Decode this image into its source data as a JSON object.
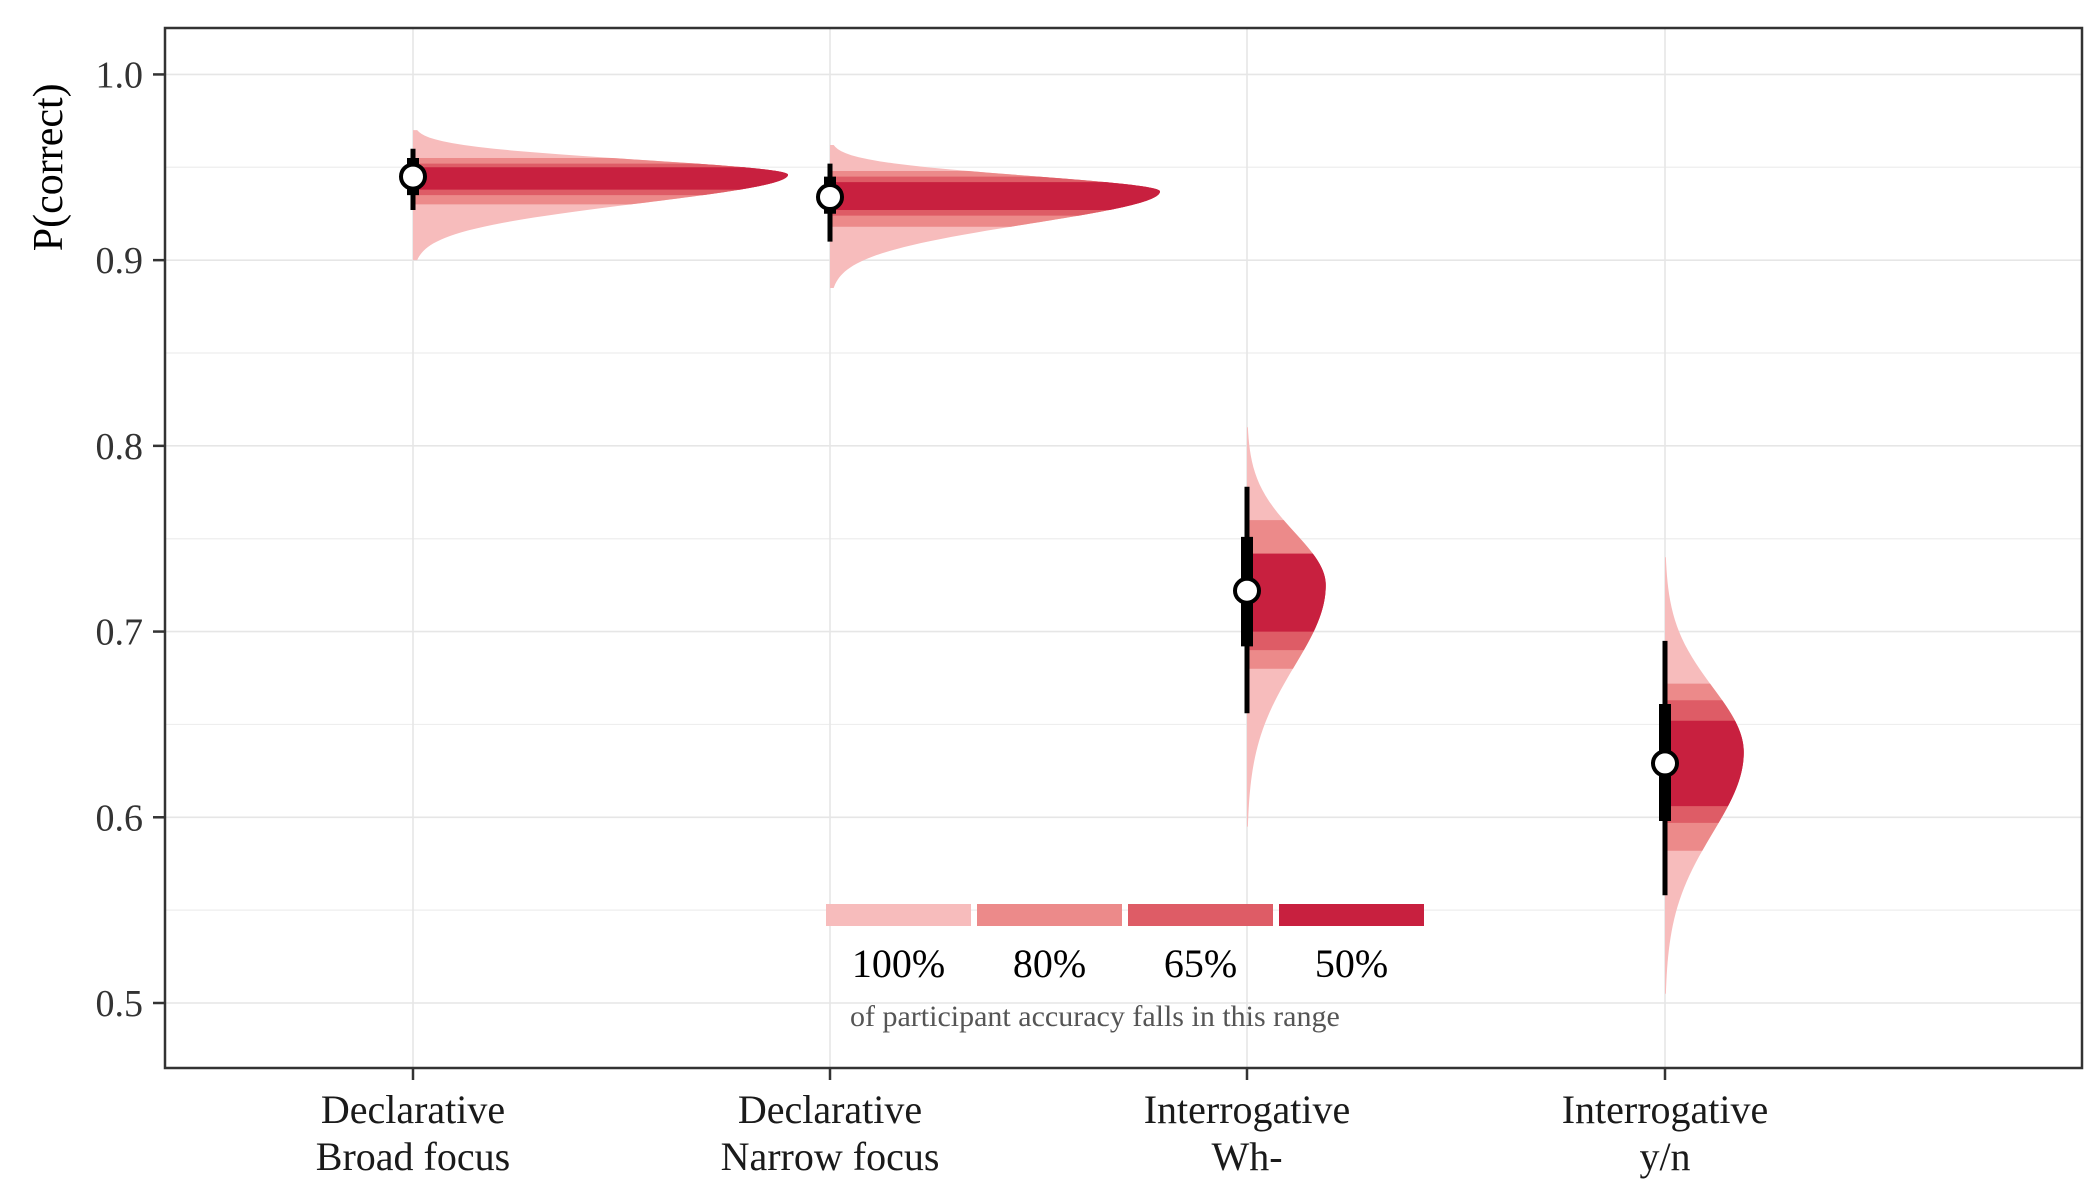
{
  "chart_data": {
    "type": "half-violin",
    "ylabel": "P(correct)",
    "ylim": [
      0.465,
      1.025
    ],
    "yticks": [
      0.5,
      0.6,
      0.7,
      0.8,
      0.9,
      1.0
    ],
    "ytick_labels": [
      "0.5",
      "0.6",
      "0.7",
      "0.8",
      "0.9",
      "1.0"
    ],
    "grid": true,
    "categories": [
      [
        "Declarative",
        "Broad focus"
      ],
      [
        "Declarative",
        "Narrow focus"
      ],
      [
        "Interrogative",
        "Wh-"
      ],
      [
        "Interrogative",
        "y/n"
      ]
    ],
    "series": [
      {
        "median": 0.945,
        "interval_thick": [
          0.935,
          0.955
        ],
        "interval_thin": [
          0.927,
          0.96
        ],
        "density_mode": 0.946,
        "density_min": 0.9,
        "density_max": 0.97,
        "bands": {
          "100": [
            0.9,
            0.97
          ],
          "80": [
            0.93,
            0.955
          ],
          "65": [
            0.935,
            0.952
          ],
          "50": [
            0.938,
            0.95
          ]
        }
      },
      {
        "median": 0.934,
        "interval_thick": [
          0.925,
          0.945
        ],
        "interval_thin": [
          0.91,
          0.952
        ],
        "density_mode": 0.937,
        "density_min": 0.885,
        "density_max": 0.962,
        "bands": {
          "100": [
            0.885,
            0.962
          ],
          "80": [
            0.918,
            0.948
          ],
          "65": [
            0.924,
            0.945
          ],
          "50": [
            0.927,
            0.942
          ]
        }
      },
      {
        "median": 0.722,
        "interval_thick": [
          0.692,
          0.751
        ],
        "interval_thin": [
          0.656,
          0.778
        ],
        "density_mode": 0.725,
        "density_min": 0.595,
        "density_max": 0.81,
        "bands": {
          "100": [
            0.595,
            0.81
          ],
          "80": [
            0.68,
            0.76
          ],
          "65": [
            0.69,
            0.742
          ],
          "50": [
            0.7,
            0.742
          ]
        }
      },
      {
        "median": 0.629,
        "interval_thick": [
          0.598,
          0.661
        ],
        "interval_thin": [
          0.558,
          0.695
        ],
        "density_mode": 0.635,
        "density_min": 0.505,
        "density_max": 0.74,
        "bands": {
          "100": [
            0.505,
            0.74
          ],
          "80": [
            0.582,
            0.672
          ],
          "65": [
            0.597,
            0.663
          ],
          "50": [
            0.606,
            0.652
          ]
        }
      }
    ],
    "density_scale": [
      1.0,
      0.88,
      0.21,
      0.21
    ],
    "legend": {
      "placement": "bottom-center",
      "items": [
        "100%",
        "80%",
        "65%",
        "50%"
      ],
      "colors": [
        "#f7bcbc",
        "#ec8a8a",
        "#de5c66",
        "#c8203f"
      ],
      "caption": "of participant accuracy falls in this range"
    },
    "colors": {
      "band100": "#f7bcbc",
      "band80": "#ec8a8a",
      "band65": "#de5c66",
      "band50": "#c8203f",
      "interval": "#000000",
      "grid": "#e6e6e6",
      "frame": "#333333"
    }
  }
}
